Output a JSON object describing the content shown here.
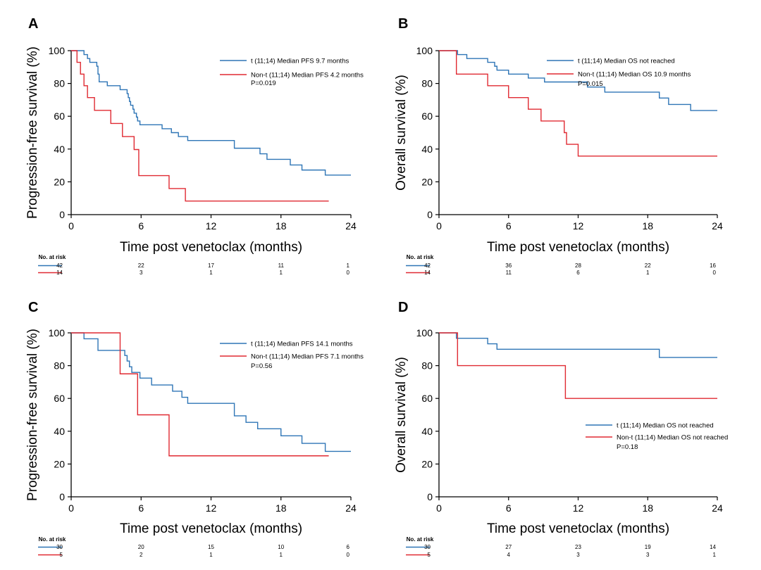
{
  "chart_data": [
    {
      "panel": "A",
      "type": "line",
      "xlabel": "Time post venetoclax (months)",
      "ylabel": "Progression-free survival (%)",
      "xlim": [
        0,
        24
      ],
      "ylim": [
        0,
        100
      ],
      "xticks": [
        0,
        6,
        12,
        18,
        24
      ],
      "yticks": [
        0,
        20,
        40,
        60,
        80,
        100
      ],
      "legend_position": "top-right",
      "series": [
        {
          "name": "t (11;14) Median PFS 9.7 months",
          "color": "#2E75B6",
          "steps": [
            [
              0,
              100
            ],
            [
              1.1,
              97.6
            ],
            [
              1.4,
              95.2
            ],
            [
              1.6,
              92.9
            ],
            [
              2.2,
              90.5
            ],
            [
              2.3,
              88.1
            ],
            [
              2.3,
              85.7
            ],
            [
              2.4,
              83.3
            ],
            [
              2.4,
              81
            ],
            [
              3.1,
              78.6
            ],
            [
              4.2,
              76.2
            ],
            [
              4.8,
              73.8
            ],
            [
              4.9,
              71.4
            ],
            [
              5,
              69
            ],
            [
              5.1,
              66.7
            ],
            [
              5.3,
              64.3
            ],
            [
              5.4,
              61.9
            ],
            [
              5.6,
              59.5
            ],
            [
              5.7,
              57.1
            ],
            [
              5.9,
              54.8
            ],
            [
              7.8,
              52.4
            ],
            [
              8.6,
              50
            ],
            [
              9.2,
              47.6
            ],
            [
              10,
              45.2
            ],
            [
              14,
              40.5
            ],
            [
              16.2,
              37.1
            ],
            [
              16.8,
              33.7
            ],
            [
              18.8,
              30.3
            ],
            [
              19.8,
              27.2
            ],
            [
              21.8,
              24.1
            ]
          ],
          "end_x": 24
        },
        {
          "name": "Non-t (11;14) Median PFS 4.2 months",
          "color": "#E02A32",
          "steps": [
            [
              0,
              100
            ],
            [
              0.5,
              92.9
            ],
            [
              0.8,
              85.7
            ],
            [
              1.1,
              78.6
            ],
            [
              1.4,
              71.4
            ],
            [
              2,
              63.6
            ],
            [
              3.4,
              55.6
            ],
            [
              4.4,
              47.6
            ],
            [
              5.4,
              39.7
            ],
            [
              5.8,
              23.8
            ],
            [
              8.4,
              15.9
            ],
            [
              9.8,
              8.3
            ]
          ],
          "end_x": 22.1
        }
      ],
      "annotation": "P=0.019",
      "risk_table": {
        "header": "No. at risk",
        "times": [
          0,
          6,
          12,
          18,
          24
        ],
        "rows": [
          {
            "color": "#2E75B6",
            "counts": [
              "42",
              "22",
              "17",
              "11",
              "1"
            ]
          },
          {
            "color": "#E02A32",
            "counts": [
              "14",
              "3",
              "1",
              "1",
              "0"
            ]
          }
        ]
      }
    },
    {
      "panel": "B",
      "type": "line",
      "xlabel": "Time post venetoclax (months)",
      "ylabel": "Overall survival (%)",
      "xlim": [
        0,
        24
      ],
      "ylim": [
        0,
        100
      ],
      "xticks": [
        0,
        6,
        12,
        18,
        24
      ],
      "yticks": [
        0,
        20,
        40,
        60,
        80,
        100
      ],
      "legend_position": "top-right",
      "series": [
        {
          "name": "t (11;14) Median OS not reached",
          "color": "#2E75B6",
          "steps": [
            [
              0,
              100
            ],
            [
              1.6,
              97.6
            ],
            [
              2.4,
              95.2
            ],
            [
              4.2,
              92.9
            ],
            [
              4.8,
              90.5
            ],
            [
              5,
              88.1
            ],
            [
              6,
              85.7
            ],
            [
              7.7,
              83.3
            ],
            [
              9.1,
              80.9
            ],
            [
              12.8,
              77.8
            ],
            [
              14.3,
              74.7
            ],
            [
              19,
              71.1
            ],
            [
              19.8,
              67.2
            ],
            [
              21.7,
              63.5
            ]
          ],
          "end_x": 24
        },
        {
          "name": "Non-t (11;14) Median OS 10.9  months",
          "color": "#E02A32",
          "steps": [
            [
              0,
              100
            ],
            [
              1.5,
              85.7
            ],
            [
              4.2,
              78.6
            ],
            [
              6,
              71.4
            ],
            [
              7.7,
              64.3
            ],
            [
              8.8,
              57.1
            ],
            [
              10.8,
              50
            ],
            [
              11,
              42.9
            ],
            [
              12,
              35.7
            ]
          ],
          "end_x": 24
        }
      ],
      "annotation": "P=0.015",
      "risk_table": {
        "header": "No. at risk",
        "times": [
          0,
          6,
          12,
          18,
          24
        ],
        "rows": [
          {
            "color": "#2E75B6",
            "counts": [
              "42",
              "36",
              "28",
              "22",
              "16"
            ]
          },
          {
            "color": "#E02A32",
            "counts": [
              "14",
              "11",
              "6",
              "1",
              "0"
            ]
          }
        ]
      }
    },
    {
      "panel": "C",
      "type": "line",
      "xlabel": "Time post venetoclax (months)",
      "ylabel": "Progression-free survival (%)",
      "xlim": [
        0,
        24
      ],
      "ylim": [
        0,
        100
      ],
      "xticks": [
        0,
        6,
        12,
        18,
        24
      ],
      "yticks": [
        0,
        20,
        40,
        60,
        80,
        100
      ],
      "legend_position": "top-right",
      "series": [
        {
          "name": "t (11;14) Median PFS 14.1 months",
          "color": "#2E75B6",
          "steps": [
            [
              0,
              100
            ],
            [
              1.1,
              96.4
            ],
            [
              2.3,
              89.3
            ],
            [
              4.6,
              86.2
            ],
            [
              4.8,
              82.8
            ],
            [
              5,
              79.3
            ],
            [
              5.2,
              75.9
            ],
            [
              5.9,
              72.4
            ],
            [
              6.9,
              68.2
            ],
            [
              8.7,
              64.4
            ],
            [
              9.5,
              60.7
            ],
            [
              10,
              57
            ],
            [
              14,
              49.4
            ],
            [
              15,
              45.4
            ],
            [
              16,
              41.5
            ],
            [
              18,
              37.2
            ],
            [
              19.8,
              32.6
            ],
            [
              21.8,
              27.7
            ]
          ],
          "end_x": 24
        },
        {
          "name": "Non-t (11;14) Median PFS 7.1 months",
          "color": "#E02A32",
          "steps": [
            [
              0,
              100
            ],
            [
              4.2,
              75
            ],
            [
              5.7,
              50
            ],
            [
              8.4,
              25
            ]
          ],
          "end_x": 22.1
        }
      ],
      "annotation": "P=0.56",
      "risk_table": {
        "header": "No. at risk",
        "times": [
          0,
          6,
          12,
          18,
          24
        ],
        "rows": [
          {
            "color": "#2E75B6",
            "counts": [
              "30",
              "20",
              "15",
              "10",
              "6"
            ]
          },
          {
            "color": "#E02A32",
            "counts": [
              "5",
              "2",
              "1",
              "1",
              "0"
            ]
          }
        ]
      }
    },
    {
      "panel": "D",
      "type": "line",
      "xlabel": "Time post venetoclax (months)",
      "ylabel": "Overall survival (%)",
      "xlim": [
        0,
        24
      ],
      "ylim": [
        0,
        100
      ],
      "xticks": [
        0,
        6,
        12,
        18,
        24
      ],
      "yticks": [
        0,
        20,
        40,
        60,
        80,
        100
      ],
      "legend_position": "bottom-right",
      "series": [
        {
          "name": "t (11;14) Median OS not reached",
          "color": "#2E75B6",
          "steps": [
            [
              0,
              100
            ],
            [
              1.5,
              96.7
            ],
            [
              4.2,
              93.3
            ],
            [
              5,
              90
            ],
            [
              19,
              85
            ]
          ],
          "end_x": 24
        },
        {
          "name": "Non-t (11;14) Median OS not reached",
          "color": "#E02A32",
          "steps": [
            [
              0,
              100
            ],
            [
              1.6,
              80
            ],
            [
              10.9,
              60
            ]
          ],
          "end_x": 24
        }
      ],
      "annotation": "P=0.18",
      "risk_table": {
        "header": "No. at risk",
        "times": [
          0,
          6,
          12,
          18,
          24
        ],
        "rows": [
          {
            "color": "#2E75B6",
            "counts": [
              "30",
              "27",
              "23",
              "19",
              "14"
            ]
          },
          {
            "color": "#E02A32",
            "counts": [
              "5",
              "4",
              "3",
              "3",
              "1"
            ]
          }
        ]
      }
    }
  ]
}
